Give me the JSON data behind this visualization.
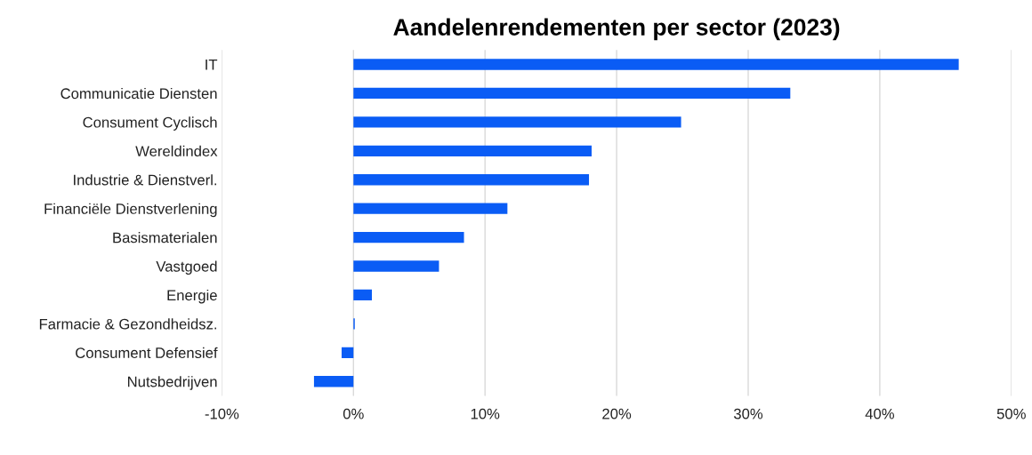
{
  "chart_data": {
    "type": "bar",
    "orientation": "horizontal",
    "title": "Aandelenrendementen per sector (2023)",
    "categories": [
      "IT",
      "Communicatie Diensten",
      "Consument Cyclisch",
      "Wereldindex",
      "Industrie & Dienstverl.",
      "Financiële Dienstverlening",
      "Basismaterialen",
      "Vastgoed",
      "Energie",
      "Farmacie & Gezondheidsz.",
      "Consument Defensief",
      "Nutsbedrijven"
    ],
    "values": [
      46.0,
      33.2,
      24.9,
      18.1,
      17.9,
      11.7,
      8.4,
      6.5,
      1.4,
      0.1,
      -0.9,
      -3.0
    ],
    "color": "#0a5cf5",
    "xlim": [
      -10,
      50
    ],
    "xticks": [
      {
        "value": -10,
        "label": "-10%"
      },
      {
        "value": 0,
        "label": "0%"
      },
      {
        "value": 10,
        "label": "10%"
      },
      {
        "value": 20,
        "label": "20%"
      },
      {
        "value": 30,
        "label": "30%"
      },
      {
        "value": 40,
        "label": "40%"
      },
      {
        "value": 50,
        "label": "50%"
      }
    ],
    "grid": "x"
  }
}
